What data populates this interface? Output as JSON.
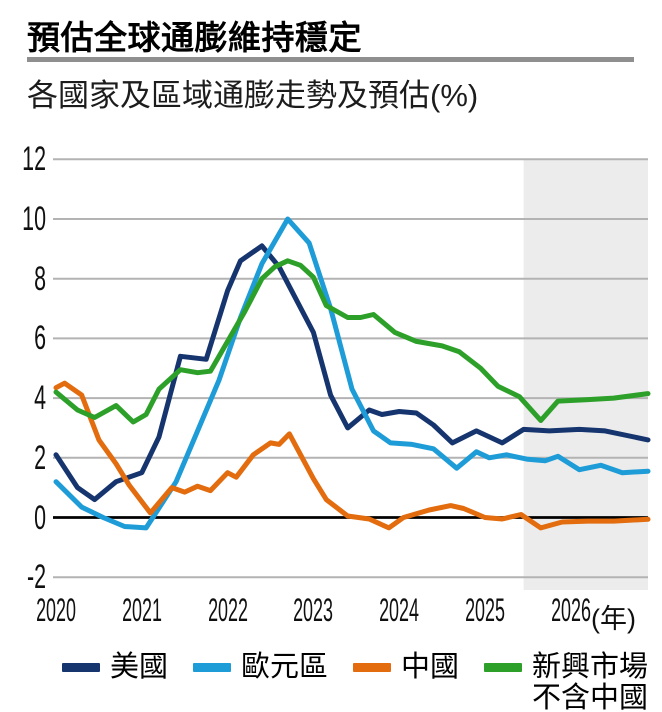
{
  "page": {
    "title": "預估全球通膨維持穩定",
    "subtitle": "各國家及區域通膨走勢及預估(%)"
  },
  "chart_data": {
    "type": "line",
    "title": "預估全球通膨維持穩定",
    "subtitle": "各國家及區域通膨走勢及預估(%)",
    "unit": "%",
    "x_axis": {
      "ticks": [
        "2020",
        "2021",
        "2022",
        "2023",
        "2024",
        "2025",
        "2026"
      ],
      "tick_values": [
        2020,
        2021,
        2022,
        2023,
        2024,
        2025,
        2026
      ],
      "unit_label": "(年)",
      "range": [
        2020,
        2026.95
      ]
    },
    "y_axis": {
      "ticks": [
        "12",
        "10",
        "8",
        "6",
        "4",
        "2",
        "0",
        "-2"
      ],
      "tick_values": [
        12,
        10,
        8,
        6,
        4,
        2,
        0,
        -2
      ],
      "range": [
        -2,
        12
      ],
      "grid": true,
      "grid_color": "#b3b3b3",
      "zero_line_color": "#000000"
    },
    "forecast_region": {
      "start": 2025.45,
      "end": 2026.95,
      "color": "#ececec"
    },
    "legend": {
      "position": "bottom",
      "items": [
        {
          "label": "美國"
        },
        {
          "label": "歐元區"
        },
        {
          "label": "中國"
        },
        {
          "label": "新興市場",
          "label2": "不含中國"
        }
      ]
    },
    "series": [
      {
        "name": "美國",
        "color": "#16356E",
        "points": [
          [
            2020.0,
            2.1
          ],
          [
            2020.25,
            1.0
          ],
          [
            2020.45,
            0.6
          ],
          [
            2020.7,
            1.2
          ],
          [
            2021.0,
            1.5
          ],
          [
            2021.2,
            2.7
          ],
          [
            2021.45,
            5.4
          ],
          [
            2021.75,
            5.3
          ],
          [
            2022.0,
            7.6
          ],
          [
            2022.15,
            8.6
          ],
          [
            2022.4,
            9.1
          ],
          [
            2022.6,
            8.4
          ],
          [
            2023.0,
            6.2
          ],
          [
            2023.2,
            4.1
          ],
          [
            2023.4,
            3.0
          ],
          [
            2023.65,
            3.6
          ],
          [
            2023.8,
            3.45
          ],
          [
            2024.0,
            3.55
          ],
          [
            2024.2,
            3.5
          ],
          [
            2024.4,
            3.1
          ],
          [
            2024.62,
            2.5
          ],
          [
            2024.9,
            2.9
          ],
          [
            2025.05,
            2.7
          ],
          [
            2025.2,
            2.5
          ],
          [
            2025.45,
            2.95
          ],
          [
            2025.75,
            2.9
          ],
          [
            2026.1,
            2.95
          ],
          [
            2026.4,
            2.9
          ],
          [
            2026.9,
            2.6
          ]
        ]
      },
      {
        "name": "歐元區",
        "color": "#1E9CD7",
        "points": [
          [
            2020.0,
            1.2
          ],
          [
            2020.3,
            0.35
          ],
          [
            2020.55,
            0.0
          ],
          [
            2020.8,
            -0.3
          ],
          [
            2021.05,
            -0.35
          ],
          [
            2021.4,
            1.2
          ],
          [
            2021.65,
            2.9
          ],
          [
            2021.9,
            4.6
          ],
          [
            2022.15,
            6.7
          ],
          [
            2022.4,
            8.5
          ],
          [
            2022.7,
            10.0
          ],
          [
            2022.95,
            9.2
          ],
          [
            2023.2,
            7.0
          ],
          [
            2023.45,
            4.3
          ],
          [
            2023.7,
            2.9
          ],
          [
            2023.9,
            2.5
          ],
          [
            2024.15,
            2.45
          ],
          [
            2024.4,
            2.3
          ],
          [
            2024.67,
            1.65
          ],
          [
            2024.9,
            2.2
          ],
          [
            2025.05,
            2.0
          ],
          [
            2025.25,
            2.1
          ],
          [
            2025.5,
            1.95
          ],
          [
            2025.7,
            1.9
          ],
          [
            2025.85,
            2.05
          ],
          [
            2026.1,
            1.6
          ],
          [
            2026.35,
            1.75
          ],
          [
            2026.6,
            1.5
          ],
          [
            2026.9,
            1.55
          ]
        ]
      },
      {
        "name": "中國",
        "color": "#E26C0E",
        "points": [
          [
            2020.0,
            4.35
          ],
          [
            2020.1,
            4.5
          ],
          [
            2020.3,
            4.1
          ],
          [
            2020.5,
            2.6
          ],
          [
            2020.7,
            1.8
          ],
          [
            2020.85,
            1.1
          ],
          [
            2021.1,
            0.15
          ],
          [
            2021.35,
            1.0
          ],
          [
            2021.5,
            0.85
          ],
          [
            2021.65,
            1.05
          ],
          [
            2021.8,
            0.9
          ],
          [
            2022.0,
            1.5
          ],
          [
            2022.1,
            1.35
          ],
          [
            2022.3,
            2.1
          ],
          [
            2022.5,
            2.5
          ],
          [
            2022.6,
            2.45
          ],
          [
            2022.72,
            2.8
          ],
          [
            2023.0,
            1.3
          ],
          [
            2023.15,
            0.6
          ],
          [
            2023.4,
            0.05
          ],
          [
            2023.65,
            -0.05
          ],
          [
            2023.88,
            -0.35
          ],
          [
            2024.05,
            0.0
          ],
          [
            2024.35,
            0.25
          ],
          [
            2024.6,
            0.4
          ],
          [
            2024.75,
            0.3
          ],
          [
            2025.0,
            0.0
          ],
          [
            2025.2,
            -0.05
          ],
          [
            2025.42,
            0.1
          ],
          [
            2025.65,
            -0.35
          ],
          [
            2025.9,
            -0.15
          ],
          [
            2026.2,
            -0.12
          ],
          [
            2026.5,
            -0.12
          ],
          [
            2026.9,
            -0.06
          ]
        ]
      },
      {
        "name": "新興市場不含中國",
        "color": "#2DA02A",
        "points": [
          [
            2020.0,
            4.2
          ],
          [
            2020.25,
            3.6
          ],
          [
            2020.45,
            3.35
          ],
          [
            2020.7,
            3.75
          ],
          [
            2020.9,
            3.2
          ],
          [
            2021.05,
            3.45
          ],
          [
            2021.2,
            4.3
          ],
          [
            2021.45,
            4.95
          ],
          [
            2021.65,
            4.85
          ],
          [
            2021.8,
            4.9
          ],
          [
            2022.0,
            5.9
          ],
          [
            2022.2,
            6.9
          ],
          [
            2022.4,
            8.0
          ],
          [
            2022.55,
            8.4
          ],
          [
            2022.7,
            8.6
          ],
          [
            2022.85,
            8.45
          ],
          [
            2023.0,
            8.05
          ],
          [
            2023.15,
            7.1
          ],
          [
            2023.4,
            6.7
          ],
          [
            2023.55,
            6.7
          ],
          [
            2023.7,
            6.8
          ],
          [
            2023.95,
            6.2
          ],
          [
            2024.2,
            5.9
          ],
          [
            2024.5,
            5.75
          ],
          [
            2024.7,
            5.55
          ],
          [
            2024.95,
            5.0
          ],
          [
            2025.15,
            4.4
          ],
          [
            2025.4,
            4.05
          ],
          [
            2025.65,
            3.25
          ],
          [
            2025.85,
            3.9
          ],
          [
            2026.2,
            3.95
          ],
          [
            2026.5,
            4.0
          ],
          [
            2026.9,
            4.15
          ]
        ]
      }
    ]
  }
}
